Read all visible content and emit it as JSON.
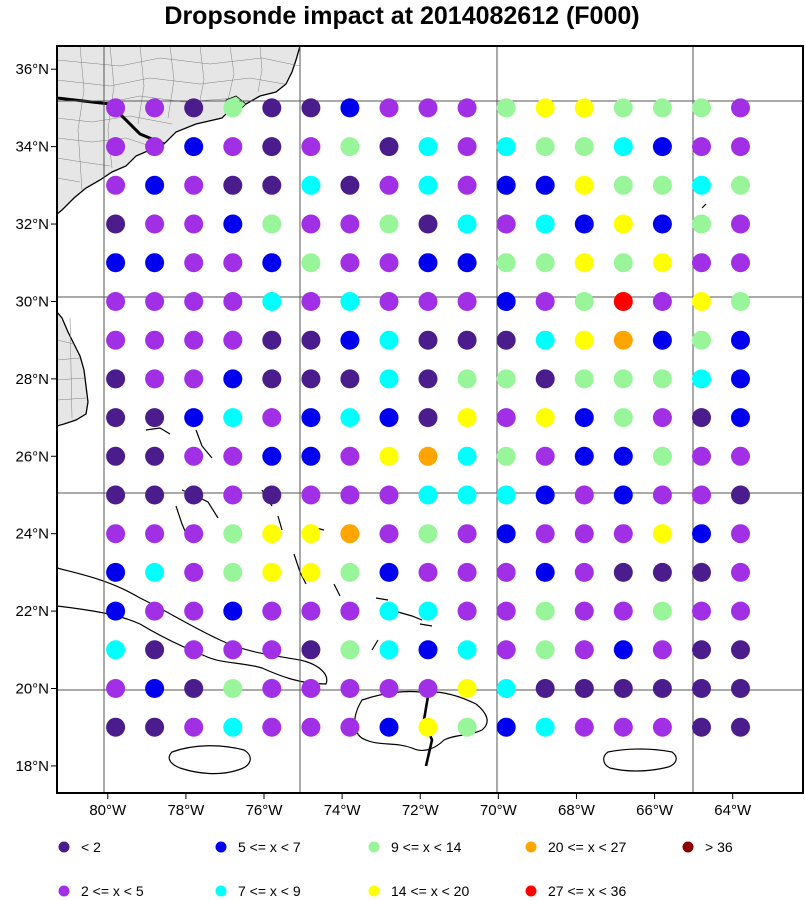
{
  "title": "Dropsonde impact at 2014082612 (F000)",
  "map": {
    "lon_range": [
      -81.3,
      -62.2
    ],
    "lat_range": [
      17.3,
      36.6
    ],
    "lon_grid_lines": [
      -80,
      -75,
      -70,
      -65
    ],
    "lat_grid_lines": [
      20,
      25,
      30,
      35
    ],
    "lon_ticks": [
      {
        "value": -80,
        "label": "80°W"
      },
      {
        "value": -78,
        "label": "78°W"
      },
      {
        "value": -76,
        "label": "76°W"
      },
      {
        "value": -74,
        "label": "74°W"
      },
      {
        "value": -72,
        "label": "72°W"
      },
      {
        "value": -70,
        "label": "70°W"
      },
      {
        "value": -68,
        "label": "68°W"
      },
      {
        "value": -66,
        "label": "66°W"
      },
      {
        "value": -64,
        "label": "64°W"
      }
    ],
    "lat_ticks": [
      {
        "value": 18,
        "label": "18°N"
      },
      {
        "value": 20,
        "label": "20°N"
      },
      {
        "value": 22,
        "label": "22°N"
      },
      {
        "value": 24,
        "label": "24°N"
      },
      {
        "value": 26,
        "label": "26°N"
      },
      {
        "value": 28,
        "label": "28°N"
      },
      {
        "value": 30,
        "label": "30°N"
      },
      {
        "value": 32,
        "label": "32°N"
      },
      {
        "value": 34,
        "label": "34°N"
      },
      {
        "value": 36,
        "label": "36°N"
      }
    ],
    "colors": {
      "land": "#e6e6e6",
      "coast": "#000000",
      "grid": "#555555"
    }
  },
  "legend": [
    {
      "id": 0,
      "label": "<  2",
      "color": "#4b1d8c"
    },
    {
      "id": 1,
      "label": "2 <= x <  5",
      "color": "#a12fe6"
    },
    {
      "id": 2,
      "label": "5 <= x <  7",
      "color": "#0000ee"
    },
    {
      "id": 3,
      "label": "7 <= x <  9",
      "color": "#00ffff"
    },
    {
      "id": 4,
      "label": "9 <= x < 14",
      "color": "#99f599"
    },
    {
      "id": 5,
      "label": "14 <= x < 20",
      "color": "#ffff00"
    },
    {
      "id": 6,
      "label": "20 <= x < 27",
      "color": "#ffa500"
    },
    {
      "id": 7,
      "label": "27 <= x < 36",
      "color": "#ff0000"
    },
    {
      "id": 8,
      "label": "> 36",
      "color": "#8b0000"
    }
  ],
  "chart_data": {
    "type": "scatter",
    "title": "Dropsonde impact at 2014082612 (F000)",
    "x_values_lon": [
      -79.8,
      -78.8,
      -77.8,
      -76.8,
      -75.8,
      -74.8,
      -73.8,
      -72.8,
      -71.8,
      -70.8,
      -69.8,
      -68.8,
      -67.8,
      -66.8,
      -65.8,
      -64.8,
      -63.8
    ],
    "y_values_lat": [
      35,
      34,
      33,
      32,
      31,
      30,
      29,
      28,
      27,
      26,
      25,
      24,
      23,
      22,
      21,
      20,
      19
    ],
    "category_grid_rows": [
      [
        1,
        1,
        0,
        4,
        0,
        0,
        2,
        1,
        1,
        1,
        4,
        5,
        5,
        4,
        4,
        4,
        1
      ],
      [
        1,
        1,
        2,
        1,
        0,
        1,
        4,
        0,
        3,
        1,
        3,
        4,
        4,
        3,
        2,
        1,
        1
      ],
      [
        1,
        2,
        1,
        0,
        0,
        3,
        0,
        1,
        3,
        1,
        2,
        2,
        5,
        4,
        4,
        3,
        4
      ],
      [
        0,
        1,
        1,
        2,
        4,
        1,
        1,
        4,
        0,
        3,
        1,
        3,
        2,
        5,
        2,
        4,
        1
      ],
      [
        2,
        2,
        1,
        1,
        2,
        4,
        1,
        1,
        2,
        2,
        4,
        4,
        5,
        4,
        5,
        1,
        1
      ],
      [
        1,
        1,
        1,
        1,
        3,
        1,
        3,
        1,
        1,
        1,
        2,
        1,
        4,
        7,
        1,
        5,
        4
      ],
      [
        1,
        1,
        1,
        1,
        0,
        0,
        2,
        3,
        0,
        0,
        0,
        3,
        5,
        6,
        2,
        4,
        2
      ],
      [
        0,
        1,
        1,
        2,
        0,
        0,
        0,
        3,
        0,
        4,
        4,
        0,
        4,
        4,
        4,
        3,
        2
      ],
      [
        0,
        0,
        2,
        3,
        1,
        2,
        3,
        2,
        0,
        5,
        1,
        5,
        2,
        4,
        1,
        0,
        2
      ],
      [
        0,
        0,
        1,
        1,
        2,
        2,
        1,
        5,
        6,
        3,
        4,
        1,
        2,
        2,
        4,
        1,
        1
      ],
      [
        0,
        0,
        0,
        1,
        0,
        1,
        1,
        1,
        3,
        3,
        3,
        2,
        1,
        2,
        1,
        1,
        0
      ],
      [
        1,
        1,
        1,
        4,
        5,
        5,
        6,
        1,
        4,
        1,
        2,
        1,
        1,
        1,
        5,
        2,
        1
      ],
      [
        2,
        3,
        1,
        4,
        5,
        5,
        4,
        2,
        1,
        1,
        1,
        2,
        1,
        0,
        0,
        0,
        1
      ],
      [
        2,
        1,
        1,
        2,
        1,
        1,
        1,
        3,
        3,
        1,
        1,
        4,
        1,
        1,
        4,
        1,
        1
      ],
      [
        3,
        0,
        1,
        1,
        1,
        0,
        4,
        3,
        2,
        3,
        1,
        4,
        1,
        2,
        1,
        0,
        0
      ],
      [
        1,
        2,
        0,
        4,
        1,
        1,
        1,
        1,
        1,
        5,
        3,
        0,
        0,
        0,
        0,
        0,
        0
      ],
      [
        0,
        0,
        1,
        3,
        1,
        1,
        1,
        2,
        5,
        4,
        2,
        3,
        1,
        1,
        1,
        0,
        0
      ]
    ]
  }
}
